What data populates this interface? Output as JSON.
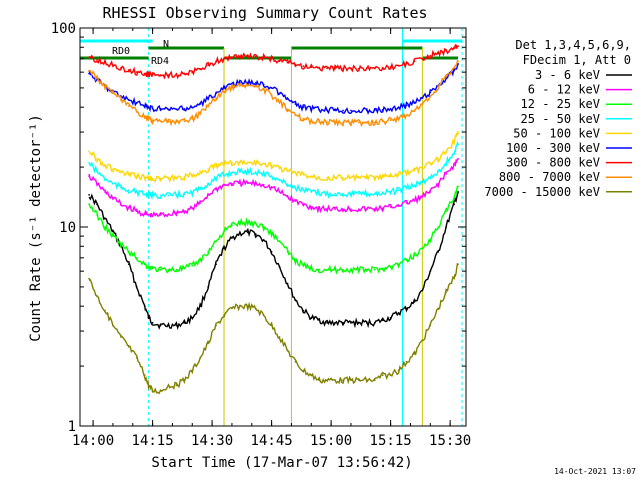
{
  "chart_data": {
    "type": "line",
    "title": "RHESSI Observing Summary Count Rates",
    "xlabel": "Start Time (17-Mar-07 13:56:42)",
    "ylabel": "Count Rate (s⁻¹ detector⁻¹)",
    "y_scale": "log",
    "ylim": [
      1,
      100
    ],
    "xlim": [
      "13:56:42",
      "15:34:00"
    ],
    "x_tick_labels": [
      "14:00",
      "14:15",
      "14:30",
      "14:45",
      "15:00",
      "15:15",
      "15:30"
    ],
    "y_tick_labels": [
      "1",
      "10",
      "100"
    ],
    "legend_header": [
      "Det 1,3,4,5,6,9,",
      "FDecim 1, Att 0"
    ],
    "legend_position": "right",
    "footer_date": "14-Oct-2021 13:07",
    "flag_labels": [
      "RD0",
      "RD4",
      "N"
    ],
    "x_sample": [
      "13:59",
      "14:01",
      "14:03",
      "14:05",
      "14:07",
      "14:09",
      "14:11",
      "14:13",
      "14:14",
      "14:15",
      "14:17",
      "14:19",
      "14:21",
      "14:23",
      "14:25",
      "14:27",
      "14:29",
      "14:31",
      "14:33",
      "14:35",
      "14:37",
      "14:39",
      "14:41",
      "14:43",
      "14:45",
      "14:47",
      "14:49",
      "14:51",
      "14:53",
      "14:55",
      "14:57",
      "14:59",
      "15:01",
      "15:03",
      "15:05",
      "15:07",
      "15:09",
      "15:11",
      "15:13",
      "15:15",
      "15:17",
      "15:19",
      "15:21",
      "15:23",
      "15:25",
      "15:27",
      "15:29",
      "15:31",
      "15:32"
    ],
    "series": [
      {
        "name": "3 - 6 keV",
        "color": "#000000",
        "values": [
          14.5,
          13,
          11,
          9.5,
          8,
          6.5,
          5,
          4,
          3.5,
          3.3,
          3.2,
          3.2,
          3.2,
          3.3,
          3.5,
          4,
          5,
          6.5,
          7.8,
          8.8,
          9.3,
          9.4,
          9.2,
          8.6,
          7.5,
          6.3,
          5.2,
          4.3,
          3.8,
          3.5,
          3.4,
          3.3,
          3.3,
          3.3,
          3.3,
          3.3,
          3.3,
          3.3,
          3.4,
          3.5,
          3.7,
          3.9,
          4.2,
          4.8,
          6,
          7.5,
          10,
          13,
          15
        ]
      },
      {
        "name": "6 - 12 keV",
        "color": "#ff00ff",
        "values": [
          18,
          16.5,
          15,
          14,
          13,
          12.5,
          12,
          11.6,
          11.5,
          11.4,
          11.5,
          11.6,
          11.8,
          12,
          12.4,
          13.2,
          14.5,
          15.5,
          16.2,
          16.5,
          16.6,
          16.6,
          16.5,
          16.3,
          15.8,
          15,
          14.2,
          13.5,
          13,
          12.6,
          12.4,
          12.3,
          12.3,
          12.3,
          12.3,
          12.3,
          12.3,
          12.3,
          12.4,
          12.6,
          12.9,
          13.2,
          13.6,
          14.2,
          15,
          16.5,
          18.5,
          20.5,
          22
        ]
      },
      {
        "name": "12 - 25 keV",
        "color": "#00ff00",
        "values": [
          13,
          11.5,
          10,
          9,
          8.2,
          7.5,
          7,
          6.5,
          6.3,
          6.2,
          6.1,
          6.1,
          6.1,
          6.2,
          6.4,
          6.8,
          7.5,
          8.5,
          9.5,
          10.2,
          10.5,
          10.5,
          10.4,
          10,
          9.3,
          8.5,
          7.5,
          6.8,
          6.4,
          6.2,
          6.1,
          6.1,
          6.1,
          6.1,
          6.1,
          6.1,
          6.1,
          6.1,
          6.2,
          6.3,
          6.5,
          6.8,
          7.2,
          7.8,
          8.7,
          10,
          12,
          14,
          16
        ]
      },
      {
        "name": "25 - 50 keV",
        "color": "#00ffff",
        "values": [
          21,
          19,
          17.5,
          16.5,
          15.8,
          15.3,
          15,
          14.6,
          14.5,
          14.4,
          14.4,
          14.4,
          14.5,
          14.6,
          14.9,
          15.5,
          16.5,
          17.5,
          18.3,
          18.8,
          19,
          19,
          18.9,
          18.6,
          18,
          17.2,
          16.4,
          15.8,
          15.3,
          15,
          14.8,
          14.7,
          14.7,
          14.7,
          14.7,
          14.7,
          14.7,
          14.7,
          14.8,
          15,
          15.3,
          15.7,
          16.2,
          16.8,
          17.7,
          19,
          21,
          23.5,
          26
        ]
      },
      {
        "name": "50 - 100 keV",
        "color": "#ffd700",
        "values": [
          24,
          22,
          20.5,
          19.5,
          18.8,
          18.3,
          18,
          17.7,
          17.6,
          17.5,
          17.5,
          17.5,
          17.6,
          17.8,
          18.2,
          18.8,
          19.5,
          20.2,
          20.8,
          21,
          21.1,
          21.1,
          21,
          20.8,
          20.4,
          19.8,
          19.2,
          18.7,
          18.3,
          18,
          17.8,
          17.7,
          17.7,
          17.7,
          17.7,
          17.7,
          17.7,
          17.7,
          17.8,
          18,
          18.3,
          18.7,
          19.2,
          19.8,
          20.8,
          22,
          24,
          27,
          30
        ]
      },
      {
        "name": "100 - 300 keV",
        "color": "#0000ff",
        "values": [
          59,
          55,
          51,
          48,
          45.5,
          43.5,
          42,
          40.5,
          40,
          39.5,
          39.2,
          39,
          39,
          39.2,
          39.8,
          41.5,
          44,
          47,
          50,
          52,
          53,
          53.2,
          53,
          52,
          50,
          47,
          44,
          41.5,
          40,
          39.2,
          38.8,
          38.6,
          38.5,
          38.5,
          38.5,
          38.5,
          38.5,
          38.6,
          38.8,
          39.2,
          39.8,
          40.8,
          42.2,
          44.5,
          47.5,
          51.5,
          56,
          61,
          66
        ]
      },
      {
        "name": "300 - 800 keV",
        "color": "#ff0000",
        "values": [
          71,
          69,
          67,
          65,
          63,
          61.5,
          60,
          59,
          58.5,
          58.2,
          58,
          58,
          58.2,
          58.7,
          59.7,
          62,
          65,
          68,
          70,
          71.5,
          72,
          72,
          71.7,
          71,
          70,
          68.5,
          67,
          65.5,
          64.3,
          63.5,
          63,
          62.7,
          62.5,
          62.5,
          62.5,
          62.5,
          62.6,
          62.8,
          63.2,
          63.8,
          64.8,
          66.2,
          68,
          70,
          72.5,
          75,
          77,
          79,
          81
        ]
      },
      {
        "name": "800 - 7000 keV",
        "color": "#ff8c00",
        "values": [
          61,
          56,
          51,
          47,
          43.5,
          40.5,
          38,
          36,
          35,
          34.3,
          34,
          33.8,
          33.8,
          34,
          35,
          37,
          40.5,
          44.5,
          48,
          50.5,
          51.5,
          51.6,
          51,
          49,
          46,
          42.5,
          39,
          36.5,
          35,
          34.2,
          33.8,
          33.6,
          33.5,
          33.5,
          33.5,
          33.5,
          33.5,
          33.6,
          33.9,
          34.4,
          35.2,
          36.5,
          38.5,
          41.5,
          45.5,
          51,
          57,
          63,
          68
        ]
      },
      {
        "name": "7000 - 15000 keV",
        "color": "#808000",
        "values": [
          5.5,
          4.5,
          3.8,
          3.2,
          2.8,
          2.5,
          2.2,
          1.8,
          1.6,
          1.5,
          1.5,
          1.6,
          1.6,
          1.7,
          1.9,
          2.2,
          2.6,
          3.2,
          3.6,
          3.9,
          4,
          4,
          3.9,
          3.6,
          3.2,
          2.8,
          2.4,
          2.1,
          1.9,
          1.8,
          1.7,
          1.7,
          1.7,
          1.7,
          1.7,
          1.7,
          1.7,
          1.7,
          1.8,
          1.8,
          1.9,
          2.1,
          2.3,
          2.7,
          3.2,
          3.9,
          4.7,
          5.6,
          6.5
        ]
      }
    ]
  }
}
